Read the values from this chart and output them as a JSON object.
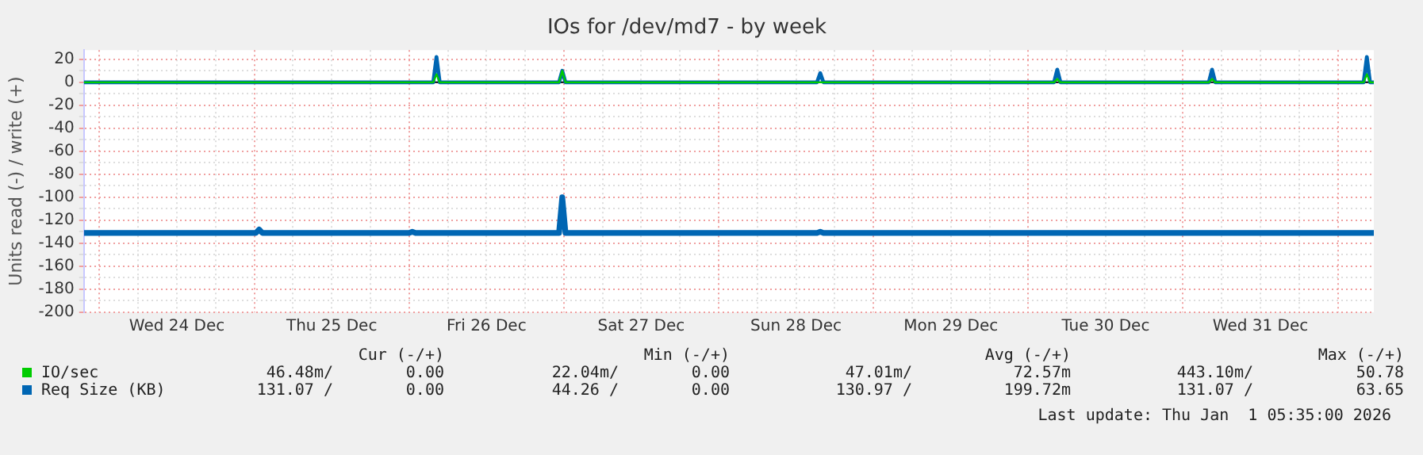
{
  "chart_data": {
    "type": "line",
    "title": "IOs for /dev/md7 - by week",
    "ylabel": "Units read (-) / write (+)",
    "xlim": [
      "2025-12-23T21:35",
      "2026-01-01T05:35"
    ],
    "ylim": [
      -200,
      28
    ],
    "yticks": [
      -200,
      {
        "value": -190,
        "label": null
      },
      -180,
      {
        "value": -170,
        "label": null
      },
      -160,
      {
        "value": -150,
        "label": null
      },
      -140,
      {
        "value": -130,
        "label": null
      },
      -120,
      {
        "value": -110,
        "label": null
      },
      -100,
      {
        "value": -90,
        "label": null
      },
      -80,
      {
        "value": -70,
        "label": null
      },
      -60,
      {
        "value": -50,
        "label": null
      },
      -40,
      {
        "value": -30,
        "label": null
      },
      -20,
      {
        "value": -10,
        "label": null
      },
      0,
      {
        "value": 10,
        "label": null
      },
      20
    ],
    "xticks": [
      {
        "value": "2025-12-24T00:00",
        "label": null
      },
      {
        "value": "2025-12-24T06:00",
        "label": null
      },
      {
        "value": "2025-12-24T12:00",
        "label": "Wed 24 Dec"
      },
      {
        "value": "2025-12-24T18:00",
        "label": null
      },
      {
        "value": "2025-12-25T00:00",
        "label": null
      },
      {
        "value": "2025-12-25T06:00",
        "label": null
      },
      {
        "value": "2025-12-25T12:00",
        "label": "Thu 25 Dec"
      },
      {
        "value": "2025-12-25T18:00",
        "label": null
      },
      {
        "value": "2025-12-26T00:00",
        "label": null
      },
      {
        "value": "2025-12-26T06:00",
        "label": null
      },
      {
        "value": "2025-12-26T12:00",
        "label": "Fri 26 Dec"
      },
      {
        "value": "2025-12-26T18:00",
        "label": null
      },
      {
        "value": "2025-12-27T00:00",
        "label": null
      },
      {
        "value": "2025-12-27T06:00",
        "label": null
      },
      {
        "value": "2025-12-27T12:00",
        "label": "Sat 27 Dec"
      },
      {
        "value": "2025-12-27T18:00",
        "label": null
      },
      {
        "value": "2025-12-28T00:00",
        "label": null
      },
      {
        "value": "2025-12-28T06:00",
        "label": null
      },
      {
        "value": "2025-12-28T12:00",
        "label": "Sun 28 Dec"
      },
      {
        "value": "2025-12-28T18:00",
        "label": null
      },
      {
        "value": "2025-12-29T00:00",
        "label": null
      },
      {
        "value": "2025-12-29T06:00",
        "label": null
      },
      {
        "value": "2025-12-29T12:00",
        "label": "Mon 29 Dec"
      },
      {
        "value": "2025-12-29T18:00",
        "label": null
      },
      {
        "value": "2025-12-30T00:00",
        "label": null
      },
      {
        "value": "2025-12-30T06:00",
        "label": null
      },
      {
        "value": "2025-12-30T12:00",
        "label": "Tue 30 Dec"
      },
      {
        "value": "2025-12-30T18:00",
        "label": null
      },
      {
        "value": "2025-12-31T00:00",
        "label": null
      },
      {
        "value": "2025-12-31T06:00",
        "label": null
      },
      {
        "value": "2025-12-31T12:00",
        "label": "Wed 31 Dec"
      },
      {
        "value": "2025-12-31T18:00",
        "label": null
      },
      {
        "value": "2026-01-01T00:00",
        "label": null
      }
    ],
    "grid": true,
    "legend": "bottom",
    "marker": "none",
    "line_style": "solid",
    "ref_lines": [
      {
        "axis": "y",
        "value": 0,
        "label": null,
        "color": "#000000"
      }
    ],
    "series": [
      {
        "name": "IO/sec",
        "color": "#00cc00",
        "x": [
          "2025-12-23T21:35",
          "2025-12-26T03:45",
          "2025-12-26T04:15",
          "2025-12-26T04:45",
          "2025-12-26T23:15",
          "2025-12-26T23:45",
          "2025-12-27T00:15",
          "2025-12-30T04:00",
          "2025-12-30T04:30",
          "2025-12-30T05:00",
          "2025-12-31T04:00",
          "2025-12-31T04:30",
          "2025-12-31T05:00",
          "2026-01-01T04:00",
          "2026-01-01T04:30",
          "2026-01-01T05:00",
          "2026-01-01T05:35"
        ],
        "values": [
          0,
          0,
          7,
          0,
          0,
          10,
          0,
          0,
          3,
          0,
          0,
          3,
          0,
          0,
          7,
          0,
          0
        ]
      },
      {
        "name": "Req Size (KB)",
        "color": "#0066b3",
        "x": [
          "2025-12-23T21:35",
          "2025-12-26T03:45",
          "2025-12-26T04:15",
          "2025-12-26T04:45",
          "2025-12-26T23:15",
          "2025-12-26T23:45",
          "2025-12-27T00:15",
          "2025-12-28T15:15",
          "2025-12-28T15:45",
          "2025-12-28T16:15",
          "2025-12-30T04:00",
          "2025-12-30T04:30",
          "2025-12-30T05:00",
          "2025-12-31T04:00",
          "2025-12-31T04:30",
          "2025-12-31T05:00",
          "2026-01-01T04:00",
          "2026-01-01T04:30",
          "2026-01-01T05:00",
          "2026-01-01T05:35"
        ],
        "values": [
          0,
          0,
          22,
          0,
          0,
          10,
          0,
          0,
          8,
          0,
          0,
          11,
          0,
          0,
          11,
          0,
          0,
          22,
          0,
          0
        ]
      },
      {
        "color": "#0066b3",
        "x": [
          "2025-12-23T21:35",
          "2025-12-25T00:15",
          "2025-12-25T00:45",
          "2025-12-25T01:15",
          "2025-12-26T00:00",
          "2025-12-26T00:30",
          "2025-12-26T01:00",
          "2025-12-26T23:15",
          "2025-12-26T23:45",
          "2025-12-27T00:15",
          "2025-12-28T15:15",
          "2025-12-28T15:45",
          "2025-12-28T16:15",
          "2026-01-01T05:35"
        ],
        "values": [
          -131,
          -131,
          -128,
          -131,
          -131,
          -130,
          -131,
          -131,
          -100,
          -131,
          -131,
          -130,
          -131,
          -131
        ]
      }
    ],
    "annotations": [
      "Cur (-/+)",
      "Min (-/+)",
      "Avg (-/+)",
      "Max (-/+)",
      "46.48m/",
      "0.00",
      "22.04m/",
      "0.00",
      "47.01m/",
      "72.57m",
      "443.10m/",
      "50.78",
      "131.07 /",
      "0.00",
      "44.26 /",
      "0.00",
      "130.97 /",
      "199.72m",
      "131.07 /",
      "63.65",
      "Last update: Thu Jan  1 05:35:00 2026"
    ]
  }
}
